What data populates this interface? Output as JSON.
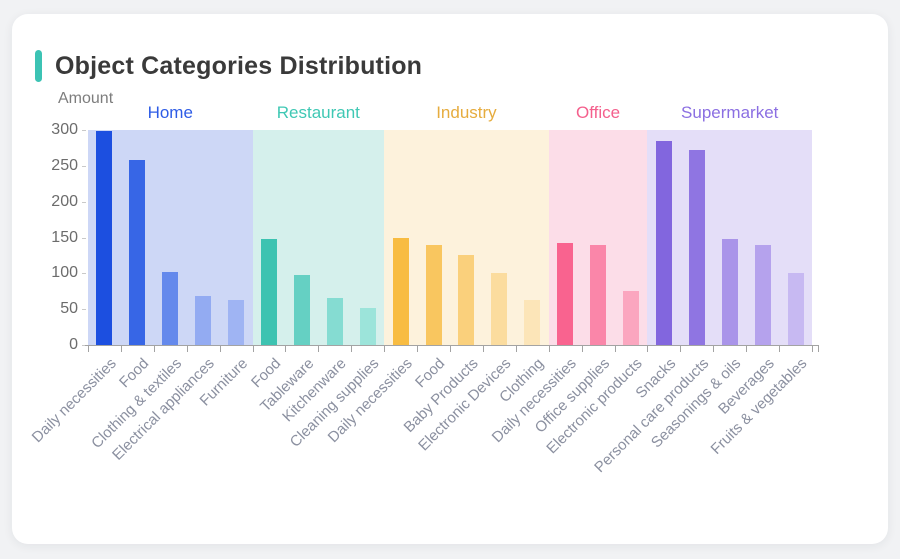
{
  "card": {
    "title": "Object Categories Distribution",
    "accent_color": "#3cc3b4"
  },
  "chart_data": {
    "type": "bar",
    "title": "Object Categories Distribution",
    "xlabel": "",
    "ylabel": "Amount",
    "ylim": [
      0,
      300
    ],
    "yticks": [
      0,
      50,
      100,
      150,
      200,
      250,
      300
    ],
    "grid": false,
    "legend_position": "group-headers-top",
    "groups": [
      {
        "name": "Home",
        "label_color": "#2e5ce6",
        "band_color": "#cdd7f6",
        "bars": [
          {
            "label": "Daily necessities",
            "value": 298,
            "color": "#1c4fe0"
          },
          {
            "label": "Food",
            "value": 258,
            "color": "#3766e6"
          },
          {
            "label": "Clothing & textiles",
            "value": 102,
            "color": "#6489ec"
          },
          {
            "label": "Electrical appliances",
            "value": 68,
            "color": "#93abf2"
          },
          {
            "label": "Furniture",
            "value": 63,
            "color": "#9fb4f3"
          }
        ]
      },
      {
        "name": "Restaurant",
        "label_color": "#3fc8b4",
        "band_color": "#d5f0ec",
        "bars": [
          {
            "label": "Food",
            "value": 148,
            "color": "#3dc3b1"
          },
          {
            "label": "Tableware",
            "value": 97,
            "color": "#65d0c3"
          },
          {
            "label": "Kitchenware",
            "value": 65,
            "color": "#85dcd2"
          },
          {
            "label": "Cleaning supplies",
            "value": 51,
            "color": "#9ce4da"
          }
        ]
      },
      {
        "name": "Industry",
        "label_color": "#e6ac3e",
        "band_color": "#fdf2dc",
        "bars": [
          {
            "label": "Daily necessities",
            "value": 150,
            "color": "#f8bc41"
          },
          {
            "label": "Food",
            "value": 139,
            "color": "#f9c65f"
          },
          {
            "label": "Baby Products",
            "value": 126,
            "color": "#fad07c"
          },
          {
            "label": "Electronic Devices",
            "value": 100,
            "color": "#fbdc9e"
          },
          {
            "label": "Clothing",
            "value": 63,
            "color": "#fce5b8"
          }
        ]
      },
      {
        "name": "Office",
        "label_color": "#f4608d",
        "band_color": "#fcdde8",
        "bars": [
          {
            "label": "Daily necessities",
            "value": 142,
            "color": "#f9638f"
          },
          {
            "label": "Office supplies",
            "value": 139,
            "color": "#fa86a9"
          },
          {
            "label": "Electronic products",
            "value": 75,
            "color": "#fba6bf"
          }
        ]
      },
      {
        "name": "Supermarket",
        "label_color": "#8b6fe2",
        "band_color": "#e4def8",
        "bars": [
          {
            "label": "Snacks",
            "value": 285,
            "color": "#8266de"
          },
          {
            "label": "Personal care products",
            "value": 272,
            "color": "#8f75e2"
          },
          {
            "label": "Seasonings & oils",
            "value": 148,
            "color": "#a994e9"
          },
          {
            "label": "Beverages",
            "value": 140,
            "color": "#b5a2ed"
          },
          {
            "label": "Fruits & vegetables",
            "value": 101,
            "color": "#c7b9f2"
          }
        ]
      }
    ]
  }
}
